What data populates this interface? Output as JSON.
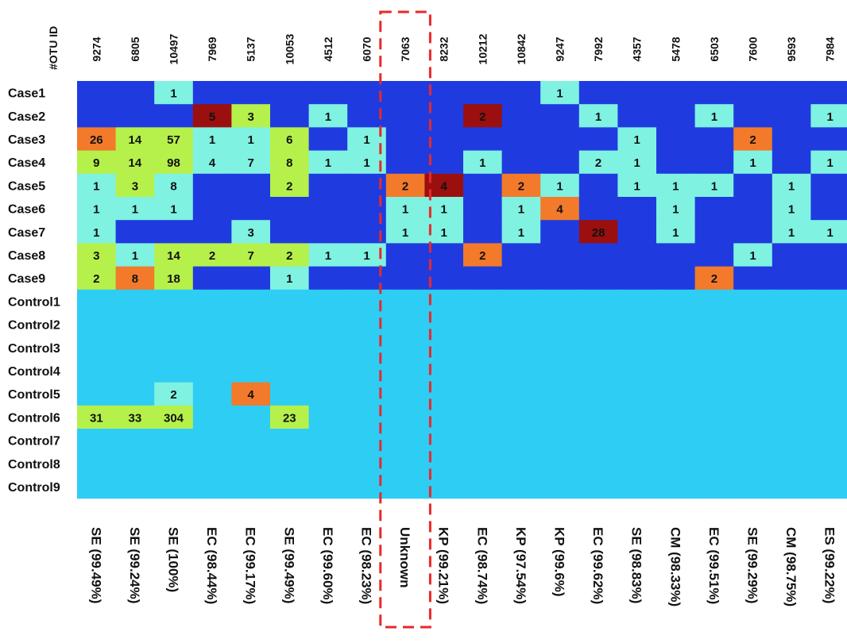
{
  "chart_data": {
    "type": "heatmap",
    "corner_label": "#OTU ID",
    "otu_ids": [
      "9274",
      "6805",
      "10497",
      "7969",
      "5137",
      "10053",
      "4512",
      "6070",
      "7063",
      "8232",
      "10212",
      "10842",
      "9247",
      "7992",
      "4357",
      "5478",
      "6503",
      "7600",
      "9593",
      "7984"
    ],
    "taxa": [
      "SE (99.49%)",
      "SE (99.24%)",
      "SE (100%)",
      "EC (98.44%)",
      "EC (99.17%)",
      "SE (99.49%)",
      "EC (99.60%)",
      "EC (98.23%)",
      "Unknown",
      "KP (99.21%)",
      "EC (98.74%)",
      "KP (97.54%)",
      "KP (99.6%)",
      "EC (99.62%)",
      "SE (98.83%)",
      "CM (98.33%)",
      "EC (99.51%)",
      "SE (99.29%)",
      "CM (98.75%)",
      "ES (99.22%)"
    ],
    "rows": [
      "Case1",
      "Case2",
      "Case3",
      "Case4",
      "Case5",
      "Case6",
      "Case7",
      "Case8",
      "Case9",
      "Control1",
      "Control2",
      "Control3",
      "Control4",
      "Control5",
      "Control6",
      "Control7",
      "Control8",
      "Control9"
    ],
    "values": [
      [
        0,
        0,
        1,
        0,
        0,
        0,
        0,
        0,
        0,
        0,
        0,
        0,
        1,
        0,
        0,
        0,
        0,
        0,
        0,
        0
      ],
      [
        0,
        0,
        0,
        5,
        3,
        0,
        1,
        0,
        0,
        0,
        2,
        0,
        0,
        1,
        0,
        0,
        1,
        0,
        0,
        1
      ],
      [
        26,
        14,
        57,
        1,
        1,
        6,
        0,
        1,
        0,
        0,
        0,
        0,
        0,
        0,
        1,
        0,
        0,
        2,
        0,
        0
      ],
      [
        9,
        14,
        98,
        4,
        7,
        8,
        1,
        1,
        0,
        0,
        1,
        0,
        0,
        2,
        1,
        0,
        0,
        1,
        0,
        1
      ],
      [
        1,
        3,
        8,
        0,
        0,
        2,
        0,
        0,
        2,
        4,
        0,
        2,
        1,
        0,
        1,
        1,
        1,
        0,
        1,
        0
      ],
      [
        1,
        1,
        1,
        0,
        0,
        0,
        0,
        0,
        1,
        1,
        0,
        1,
        4,
        0,
        0,
        1,
        0,
        0,
        1,
        0
      ],
      [
        1,
        0,
        0,
        0,
        3,
        0,
        0,
        0,
        1,
        1,
        0,
        1,
        0,
        28,
        0,
        1,
        0,
        0,
        1,
        1
      ],
      [
        3,
        1,
        14,
        2,
        7,
        2,
        1,
        1,
        0,
        0,
        2,
        0,
        0,
        0,
        0,
        0,
        0,
        1,
        0,
        0
      ],
      [
        2,
        8,
        18,
        0,
        0,
        1,
        0,
        0,
        0,
        0,
        0,
        0,
        0,
        0,
        0,
        0,
        2,
        0,
        0,
        0
      ],
      [
        0,
        0,
        0,
        0,
        0,
        0,
        0,
        0,
        0,
        0,
        0,
        0,
        0,
        0,
        0,
        0,
        0,
        0,
        0,
        0
      ],
      [
        0,
        0,
        0,
        0,
        0,
        0,
        0,
        0,
        0,
        0,
        0,
        0,
        0,
        0,
        0,
        0,
        0,
        0,
        0,
        0
      ],
      [
        0,
        0,
        0,
        0,
        0,
        0,
        0,
        0,
        0,
        0,
        0,
        0,
        0,
        0,
        0,
        0,
        0,
        0,
        0,
        0
      ],
      [
        0,
        0,
        0,
        0,
        0,
        0,
        0,
        0,
        0,
        0,
        0,
        0,
        0,
        0,
        0,
        0,
        0,
        0,
        0,
        0
      ],
      [
        0,
        0,
        2,
        0,
        4,
        0,
        0,
        0,
        0,
        0,
        0,
        0,
        0,
        0,
        0,
        0,
        0,
        0,
        0,
        0
      ],
      [
        31,
        33,
        304,
        0,
        0,
        23,
        0,
        0,
        0,
        0,
        0,
        0,
        0,
        0,
        0,
        0,
        0,
        0,
        0,
        0
      ],
      [
        0,
        0,
        0,
        0,
        0,
        0,
        0,
        0,
        0,
        0,
        0,
        0,
        0,
        0,
        0,
        0,
        0,
        0,
        0,
        0
      ],
      [
        0,
        0,
        0,
        0,
        0,
        0,
        0,
        0,
        0,
        0,
        0,
        0,
        0,
        0,
        0,
        0,
        0,
        0,
        0,
        0
      ],
      [
        0,
        0,
        0,
        0,
        0,
        0,
        0,
        0,
        0,
        0,
        0,
        0,
        0,
        0,
        0,
        0,
        0,
        0,
        0,
        0
      ]
    ],
    "cell_colors": [
      [
        "b",
        "b",
        "t",
        "b",
        "b",
        "b",
        "b",
        "b",
        "b",
        "b",
        "b",
        "b",
        "t",
        "b",
        "b",
        "b",
        "b",
        "b",
        "b",
        "b"
      ],
      [
        "b",
        "b",
        "b",
        "d",
        "g",
        "b",
        "t",
        "b",
        "b",
        "b",
        "d",
        "b",
        "b",
        "t",
        "b",
        "b",
        "t",
        "b",
        "b",
        "t"
      ],
      [
        "o",
        "g",
        "g",
        "t",
        "t",
        "g",
        "b",
        "t",
        "b",
        "b",
        "b",
        "b",
        "b",
        "b",
        "t",
        "b",
        "b",
        "o",
        "b",
        "b"
      ],
      [
        "g",
        "g",
        "g",
        "t",
        "t",
        "g",
        "t",
        "t",
        "b",
        "b",
        "t",
        "b",
        "b",
        "t",
        "t",
        "b",
        "b",
        "t",
        "b",
        "t"
      ],
      [
        "t",
        "g",
        "t",
        "b",
        "b",
        "g",
        "b",
        "b",
        "o",
        "d",
        "b",
        "o",
        "t",
        "b",
        "t",
        "t",
        "t",
        "b",
        "t",
        "b"
      ],
      [
        "t",
        "t",
        "t",
        "b",
        "b",
        "b",
        "b",
        "b",
        "t",
        "t",
        "b",
        "t",
        "o",
        "b",
        "b",
        "t",
        "b",
        "b",
        "t",
        "b"
      ],
      [
        "t",
        "b",
        "b",
        "b",
        "t",
        "b",
        "b",
        "b",
        "t",
        "t",
        "b",
        "t",
        "b",
        "d",
        "b",
        "t",
        "b",
        "b",
        "t",
        "t"
      ],
      [
        "g",
        "t",
        "g",
        "g",
        "g",
        "g",
        "t",
        "t",
        "b",
        "b",
        "o",
        "b",
        "b",
        "b",
        "b",
        "b",
        "b",
        "t",
        "b",
        "b"
      ],
      [
        "g",
        "o",
        "g",
        "b",
        "b",
        "t",
        "b",
        "b",
        "b",
        "b",
        "b",
        "b",
        "b",
        "b",
        "b",
        "b",
        "o",
        "b",
        "b",
        "b"
      ],
      [
        "c",
        "c",
        "c",
        "c",
        "c",
        "c",
        "c",
        "c",
        "c",
        "c",
        "c",
        "c",
        "c",
        "c",
        "c",
        "c",
        "c",
        "c",
        "c",
        "c"
      ],
      [
        "c",
        "c",
        "c",
        "c",
        "c",
        "c",
        "c",
        "c",
        "c",
        "c",
        "c",
        "c",
        "c",
        "c",
        "c",
        "c",
        "c",
        "c",
        "c",
        "c"
      ],
      [
        "c",
        "c",
        "c",
        "c",
        "c",
        "c",
        "c",
        "c",
        "c",
        "c",
        "c",
        "c",
        "c",
        "c",
        "c",
        "c",
        "c",
        "c",
        "c",
        "c"
      ],
      [
        "c",
        "c",
        "c",
        "c",
        "c",
        "c",
        "c",
        "c",
        "c",
        "c",
        "c",
        "c",
        "c",
        "c",
        "c",
        "c",
        "c",
        "c",
        "c",
        "c"
      ],
      [
        "c",
        "c",
        "t",
        "c",
        "o",
        "c",
        "c",
        "c",
        "c",
        "c",
        "c",
        "c",
        "c",
        "c",
        "c",
        "c",
        "c",
        "c",
        "c",
        "c"
      ],
      [
        "g",
        "g",
        "g",
        "c",
        "c",
        "g",
        "c",
        "c",
        "c",
        "c",
        "c",
        "c",
        "c",
        "c",
        "c",
        "c",
        "c",
        "c",
        "c",
        "c"
      ],
      [
        "c",
        "c",
        "c",
        "c",
        "c",
        "c",
        "c",
        "c",
        "c",
        "c",
        "c",
        "c",
        "c",
        "c",
        "c",
        "c",
        "c",
        "c",
        "c",
        "c"
      ],
      [
        "c",
        "c",
        "c",
        "c",
        "c",
        "c",
        "c",
        "c",
        "c",
        "c",
        "c",
        "c",
        "c",
        "c",
        "c",
        "c",
        "c",
        "c",
        "c",
        "c"
      ],
      [
        "c",
        "c",
        "c",
        "c",
        "c",
        "c",
        "c",
        "c",
        "c",
        "c",
        "c",
        "c",
        "c",
        "c",
        "c",
        "c",
        "c",
        "c",
        "c",
        "c"
      ]
    ],
    "palette": {
      "b": "#1f3be0",
      "c": "#2ecdf4",
      "t": "#7ff2e2",
      "g": "#b6f04a",
      "o": "#f27a2a",
      "d": "#9b0f0f"
    },
    "highlight_column": "7063",
    "highlight_color": "#e8292a"
  }
}
